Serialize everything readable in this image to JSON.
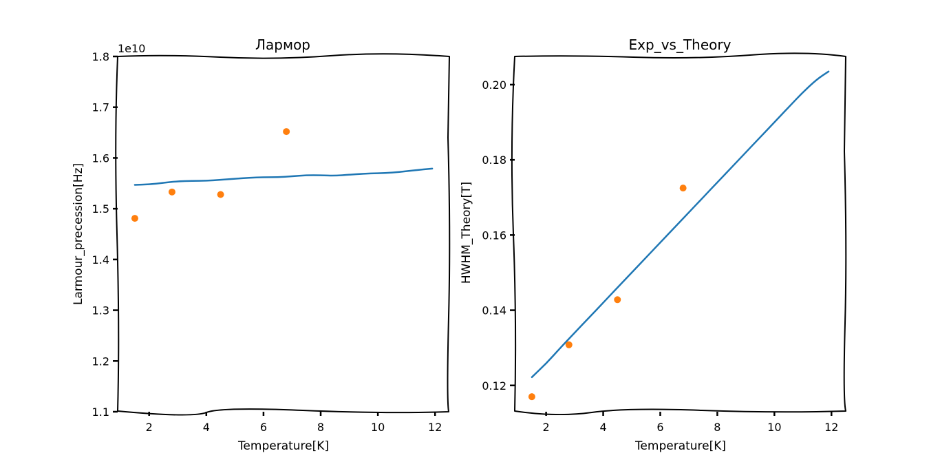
{
  "chart_data": [
    {
      "type": "line",
      "title": "Лармор",
      "xlabel": "Temperature[K]",
      "ylabel": "Larmour_precession[Hz]",
      "offset_text": "1e10",
      "xlim": [
        0.9,
        12.5
      ],
      "ylim": [
        1.1,
        1.8
      ],
      "xticks": [
        2,
        4,
        6,
        8,
        10,
        12
      ],
      "yticks": [
        1.1,
        1.2,
        1.3,
        1.4,
        1.5,
        1.6,
        1.7,
        1.8
      ],
      "ytick_labels": [
        "1.1",
        "1.2",
        "1.3",
        "1.4",
        "1.5",
        "1.6",
        "1.7",
        "1.8"
      ],
      "series": [
        {
          "kind": "line",
          "color": "#1f77b4",
          "x": [
            1.5,
            2.0,
            2.5,
            3.0,
            3.5,
            4.0,
            4.5,
            5.0,
            5.5,
            6.0,
            6.5,
            7.0,
            7.5,
            8.0,
            8.5,
            9.0,
            9.5,
            10.0,
            10.5,
            11.0,
            11.5,
            11.9
          ],
          "y": [
            1.547,
            1.548,
            1.551,
            1.554,
            1.555,
            1.555,
            1.557,
            1.559,
            1.561,
            1.562,
            1.562,
            1.564,
            1.566,
            1.566,
            1.565,
            1.567,
            1.569,
            1.57,
            1.571,
            1.574,
            1.577,
            1.579
          ]
        },
        {
          "kind": "scatter",
          "color": "#ff7f0e",
          "x": [
            1.5,
            2.8,
            4.5,
            6.8
          ],
          "y": [
            1.481,
            1.533,
            1.528,
            1.652
          ]
        }
      ]
    },
    {
      "type": "line",
      "title": "Exp_vs_Theory",
      "xlabel": "Temperature[K]",
      "ylabel": "HWHM_Theory[T]",
      "xlim": [
        0.9,
        12.5
      ],
      "ylim": [
        0.113,
        0.2075
      ],
      "xticks": [
        2,
        4,
        6,
        8,
        10,
        12
      ],
      "yticks": [
        0.12,
        0.14,
        0.16,
        0.18,
        0.2
      ],
      "ytick_labels": [
        "0.12",
        "0.14",
        "0.16",
        "0.18",
        "0.20"
      ],
      "series": [
        {
          "kind": "line",
          "color": "#1f77b4",
          "x": [
            1.5,
            2.0,
            2.5,
            3.0,
            3.5,
            4.0,
            4.5,
            5.0,
            5.5,
            6.0,
            6.5,
            7.0,
            7.5,
            8.0,
            8.5,
            9.0,
            9.5,
            10.0,
            10.5,
            11.0,
            11.5,
            11.9
          ],
          "y": [
            0.1222,
            0.1258,
            0.13,
            0.134,
            0.138,
            0.142,
            0.146,
            0.15,
            0.154,
            0.158,
            0.162,
            0.166,
            0.17,
            0.174,
            0.178,
            0.182,
            0.186,
            0.19,
            0.194,
            0.198,
            0.2015,
            0.2035
          ]
        },
        {
          "kind": "scatter",
          "color": "#ff7f0e",
          "x": [
            1.5,
            2.8,
            4.5,
            6.8
          ],
          "y": [
            0.117,
            0.1308,
            0.1428,
            0.1725
          ]
        }
      ]
    }
  ]
}
